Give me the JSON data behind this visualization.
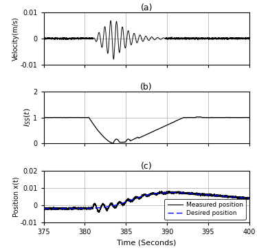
{
  "title_a": "(a)",
  "title_b": "(b)",
  "title_c": "(c)",
  "xlabel": "Time (Seconds)",
  "ylabel_a": "Velocity(m/s)",
  "ylabel_b": "I_SS(t)",
  "ylabel_c": "Position x(t)",
  "xlim": [
    375,
    400
  ],
  "xticks": [
    375,
    380,
    385,
    390,
    395,
    400
  ],
  "ylim_a": [
    -0.01,
    0.01
  ],
  "yticks_a": [
    -0.01,
    0,
    0.01
  ],
  "ylim_b": [
    0,
    2
  ],
  "yticks_b": [
    0,
    1,
    2
  ],
  "ylim_c": [
    -0.01,
    0.02
  ],
  "yticks_c": [
    -0.01,
    0,
    0.01,
    0.02
  ],
  "grid_color": "#aaaaaa",
  "line_color": "#000000",
  "desired_color": "#0000ee",
  "legend_measured": "Measured position",
  "legend_desired": "Desired position",
  "figsize": [
    3.74,
    3.63
  ],
  "dpi": 100
}
